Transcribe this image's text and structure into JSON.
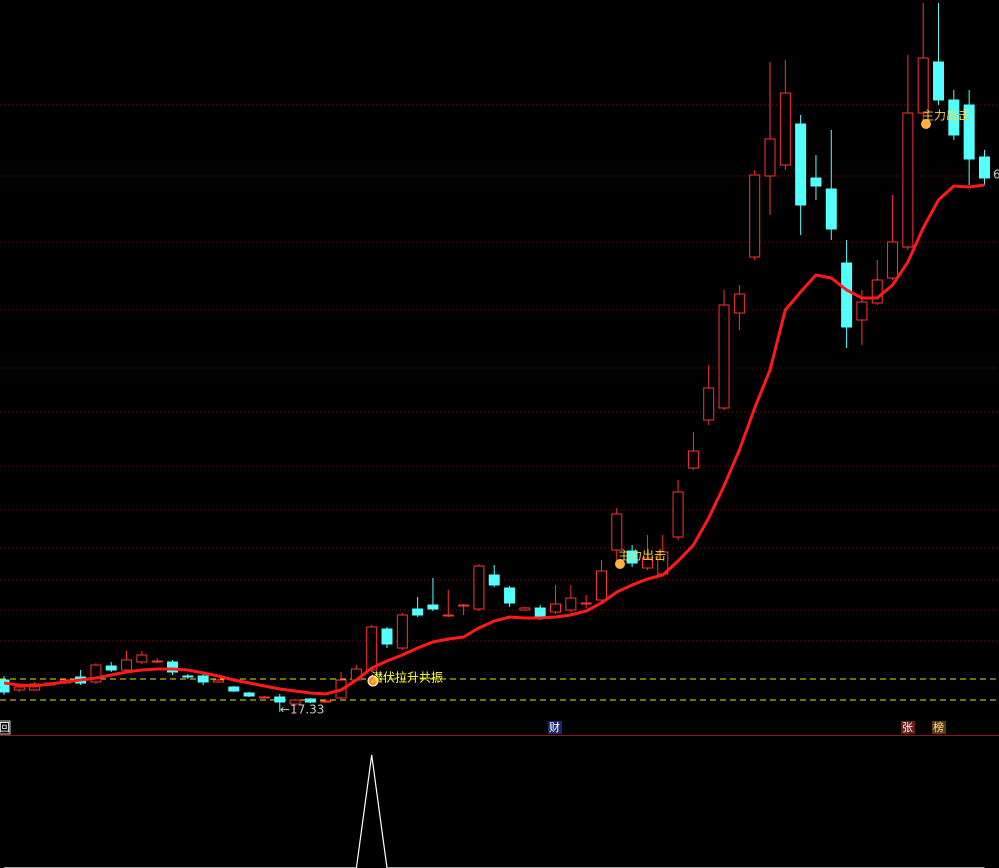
{
  "chart_data": {
    "type": "candlestick",
    "ylim": [
      15,
      88.5
    ],
    "up_color": "#ff3232",
    "down_color": "#54ffff",
    "ma_color": "#ff1a1a",
    "hline_color": "#e6e600",
    "hlines": [
      20.6,
      18.5
    ],
    "open": [
      20.5,
      19.5,
      19.5,
      20.0,
      20.2,
      20.8,
      20.3,
      21.9,
      21.5,
      22.3,
      22.4,
      22.3,
      20.9,
      20.9,
      20.3,
      19.8,
      19.2,
      18.8,
      18.8,
      18.1,
      18.6,
      18.3,
      18.7,
      20.5,
      21.5,
      25.6,
      23.7,
      27.6,
      28.0,
      27.0,
      28.0,
      27.6,
      31.0,
      29.7,
      27.5,
      27.7,
      27.3,
      27.5,
      28.2,
      28.5,
      33.5,
      33.4,
      31.7,
      31.1,
      34.8,
      41.7,
      46.5,
      47.7,
      57.2,
      62.8,
      70.9,
      72.0,
      76.1,
      70.7,
      69.6,
      62.2,
      56.5,
      58.2,
      60.7,
      63.8,
      77.2,
      82.3,
      78.5,
      78.0,
      72.8
    ],
    "high": [
      20.9,
      20.0,
      20.3,
      20.3,
      20.7,
      21.5,
      22.2,
      22.3,
      23.4,
      23.4,
      22.7,
      22.5,
      21.1,
      21.2,
      20.6,
      19.9,
      19.3,
      18.9,
      19.1,
      18.6,
      18.7,
      18.5,
      21.3,
      22.0,
      26.0,
      25.8,
      27.2,
      28.8,
      30.7,
      29.5,
      28.1,
      32.1,
      32.0,
      29.9,
      27.8,
      28.0,
      30.0,
      30.0,
      29.0,
      32.5,
      37.7,
      34.0,
      35.0,
      35.0,
      40.5,
      45.3,
      52.0,
      59.5,
      60.0,
      71.5,
      82.3,
      82.5,
      77.0,
      73.0,
      75.5,
      64.5,
      59.5,
      62.5,
      69.0,
      83.0,
      88.2,
      88.2,
      79.5,
      79.5,
      73.5
    ],
    "low": [
      19.0,
      19.3,
      19.4,
      19.9,
      20.1,
      20.0,
      20.1,
      21.3,
      21.3,
      22.1,
      22.2,
      21.0,
      20.6,
      20.0,
      20.2,
      19.3,
      18.8,
      18.7,
      17.33,
      17.9,
      18.2,
      18.2,
      18.5,
      20.3,
      21.3,
      23.7,
      23.5,
      26.8,
      27.4,
      26.8,
      27.0,
      27.4,
      29.8,
      27.8,
      27.4,
      26.5,
      27.1,
      27.3,
      27.7,
      28.3,
      32.0,
      31.8,
      31.5,
      30.9,
      34.5,
      41.5,
      46.0,
      47.5,
      55.5,
      62.5,
      67.0,
      71.5,
      65.0,
      68.5,
      64.5,
      53.7,
      54.0,
      58.0,
      60.5,
      63.5,
      76.5,
      78.0,
      74.5,
      70.0,
      70.0
    ],
    "close": [
      19.3,
      19.8,
      20.1,
      20.2,
      20.5,
      20.2,
      22.0,
      21.5,
      22.5,
      23.0,
      22.4,
      21.3,
      20.8,
      20.3,
      20.5,
      19.4,
      18.9,
      18.8,
      18.3,
      18.5,
      18.3,
      18.4,
      20.5,
      21.6,
      25.8,
      24.1,
      27.0,
      27.0,
      27.6,
      27.0,
      28.0,
      31.9,
      30.0,
      28.2,
      27.7,
      26.7,
      28.1,
      28.7,
      28.2,
      31.4,
      37.1,
      32.2,
      32.7,
      33.3,
      39.3,
      43.4,
      49.7,
      58.0,
      59.1,
      71.0,
      74.6,
      79.2,
      68.0,
      69.9,
      65.6,
      55.8,
      58.3,
      60.5,
      64.3,
      77.2,
      82.7,
      78.5,
      75.0,
      72.6,
      70.7
    ],
    "ma": [
      20.2,
      20.0,
      19.9,
      20.1,
      20.3,
      20.5,
      20.7,
      21.0,
      21.3,
      21.5,
      21.6,
      21.6,
      21.5,
      21.2,
      20.9,
      20.5,
      20.2,
      19.9,
      19.6,
      19.4,
      19.2,
      19.1,
      19.5,
      20.5,
      21.7,
      22.4,
      23.0,
      23.7,
      24.3,
      24.6,
      24.8,
      25.7,
      26.4,
      26.8,
      26.7,
      26.7,
      26.8,
      27.0,
      27.4,
      28.2,
      29.3,
      30.0,
      30.6,
      31.0,
      32.4,
      34.0,
      36.7,
      39.9,
      43.5,
      47.7,
      51.5,
      57.5,
      59.3,
      61.0,
      60.7,
      59.5,
      58.7,
      58.7,
      60.0,
      62.3,
      65.7,
      68.5,
      69.9,
      69.8,
      70.0
    ],
    "indicator": {
      "ylim": [
        0,
        1
      ],
      "color": "#ffffff",
      "values": [
        0,
        0,
        0,
        0,
        0,
        0,
        0,
        0,
        0,
        0,
        0,
        0,
        0,
        0,
        0,
        0,
        0,
        0,
        0,
        0,
        0,
        0,
        0,
        0,
        1,
        0,
        0,
        0,
        0,
        0,
        0,
        0,
        0,
        0,
        0,
        0,
        0,
        0,
        0,
        0,
        0,
        0,
        0,
        0,
        0,
        0,
        0,
        0,
        0,
        0,
        0,
        0,
        0,
        0,
        0,
        0,
        0,
        0,
        0,
        0,
        0,
        0,
        0,
        0,
        0
      ]
    },
    "annotations": [
      "潜伏拉升共振",
      "主力出击",
      "主力出击",
      "←17.33",
      "6"
    ],
    "markers": [
      "回",
      "财",
      "张",
      "榜"
    ]
  }
}
